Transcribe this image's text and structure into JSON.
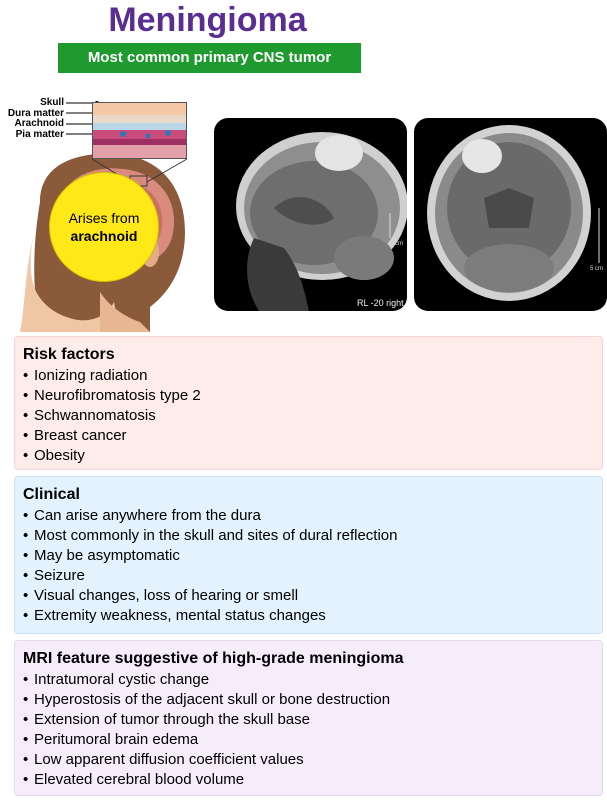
{
  "title": "Meningioma",
  "subtitle": "Most common primary CNS tumor",
  "anatomy": {
    "layers": [
      "Skull",
      "Dura matter",
      "Arachnoid",
      "Pia matter"
    ],
    "arises_line1": "Arises from",
    "arises_line2": "arachnoid"
  },
  "mri": {
    "sagittal_scale": "5 cm",
    "sagittal_caption": "RL -20 right",
    "coronal_scale": "5 cm"
  },
  "risk_factors": {
    "heading": "Risk factors",
    "items": [
      "Ionizing radiation",
      "Neurofibromatosis type 2",
      "Schwannomatosis",
      "Breast cancer",
      "Obesity"
    ]
  },
  "clinical": {
    "heading": "Clinical",
    "items": [
      "Can arise anywhere from the dura",
      "Most commonly in the skull and sites of dural reflection",
      "May be asymptomatic",
      "Seizure",
      "Visual changes, loss of hearing or smell",
      "Extremity weakness, mental status changes"
    ]
  },
  "mri_features": {
    "heading": "MRI feature suggestive of high-grade meningioma",
    "items": [
      "Intratumoral cystic change",
      "Hyperostosis of the adjacent skull or bone destruction",
      "Extension of tumor through the skull base",
      "Peritumoral brain edema",
      "Low apparent diffusion coefficient values",
      "Elevated cerebral blood volume"
    ]
  },
  "colors": {
    "title": "#5a2d91",
    "subtitle_bg": "#1e9a2e",
    "highlight": "#ffe817",
    "risk_bg": "#fdecea",
    "clinical_bg": "#e3f2fc",
    "mri_bg": "#f6edfb"
  }
}
